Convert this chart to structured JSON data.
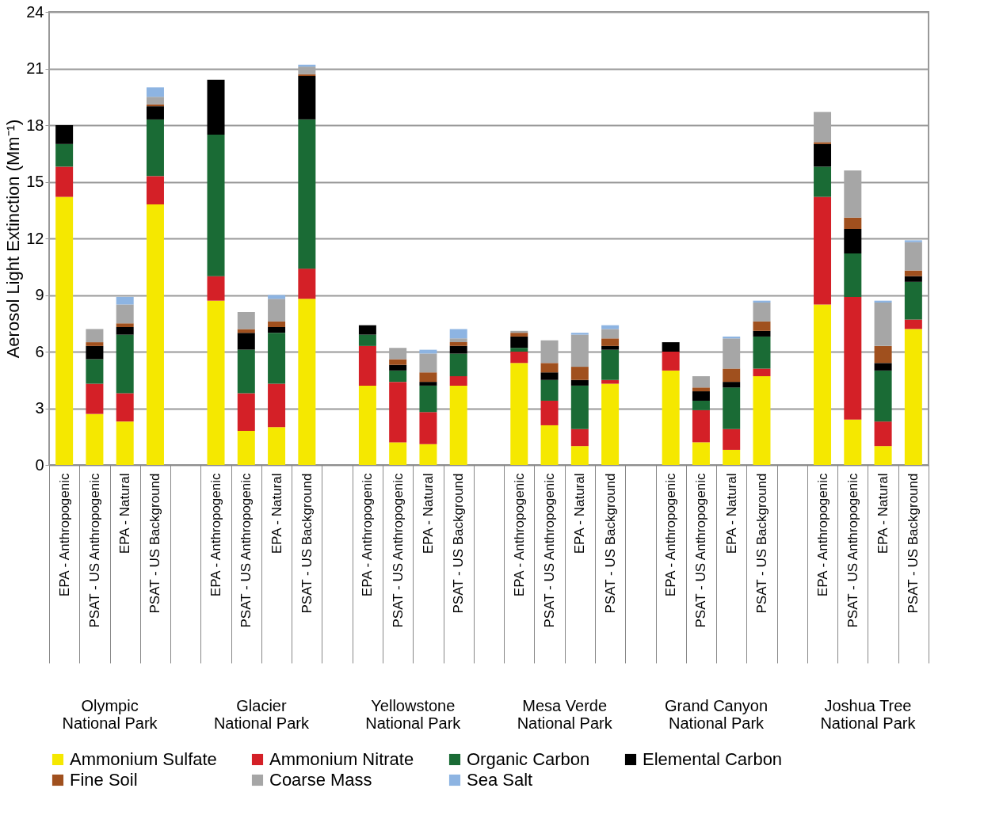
{
  "chart_data": {
    "type": "bar",
    "stacked": true,
    "ylabel": "Aerosol Light Extinction (Mm⁻¹)",
    "categories": [
      "EPA - Anthropogenic",
      "PSAT - US Anthropogenic",
      "EPA - Natural",
      "PSAT - US Background",
      null,
      "EPA - Anthropogenic",
      "PSAT - US Anthropogenic",
      "EPA - Natural",
      "PSAT - US Background",
      null,
      "EPA - Anthropogenic",
      "PSAT - US Anthropogenic",
      "EPA - Natural",
      "PSAT - US Background",
      null,
      "EPA - Anthropogenic",
      "PSAT - US Anthropogenic",
      "EPA - Natural",
      "PSAT - US Background",
      null,
      "EPA - Anthropogenic",
      "PSAT - US Anthropogenic",
      "EPA - Natural",
      "PSAT - US Background",
      null,
      "EPA - Anthropogenic",
      "PSAT - US Anthropogenic",
      "EPA - Natural",
      "PSAT - US Background"
    ],
    "series": [
      {
        "name": "Ammonium Sulfate",
        "color": "#f5e800",
        "values": [
          14.2,
          2.7,
          2.3,
          13.8,
          null,
          8.7,
          1.8,
          2.0,
          8.8,
          null,
          4.2,
          1.2,
          1.1,
          4.2,
          null,
          5.4,
          2.1,
          1.0,
          4.3,
          null,
          5.0,
          1.2,
          0.8,
          4.7,
          null,
          8.5,
          2.4,
          1.0,
          7.2
        ]
      },
      {
        "name": "Ammonium Nitrate",
        "color": "#d42027",
        "values": [
          1.6,
          1.6,
          1.5,
          1.5,
          null,
          1.3,
          2.0,
          2.3,
          1.6,
          null,
          2.1,
          3.2,
          1.7,
          0.5,
          null,
          0.6,
          1.3,
          0.9,
          0.2,
          null,
          1.0,
          1.7,
          1.1,
          0.4,
          null,
          5.7,
          6.5,
          1.3,
          0.5
        ]
      },
      {
        "name": "Organic Carbon",
        "color": "#1a6b35",
        "values": [
          1.2,
          1.3,
          3.1,
          3.0,
          null,
          7.5,
          2.3,
          2.7,
          7.9,
          null,
          0.6,
          0.6,
          1.4,
          1.2,
          null,
          0.2,
          1.1,
          2.3,
          1.6,
          null,
          0,
          0.5,
          2.2,
          1.7,
          null,
          1.6,
          2.3,
          2.7,
          2.0
        ]
      },
      {
        "name": "Elemental Carbon",
        "color": "#000000",
        "values": [
          1.0,
          0.7,
          0.4,
          0.7,
          null,
          2.9,
          0.9,
          0.3,
          2.3,
          null,
          0.5,
          0.3,
          0.2,
          0.4,
          null,
          0.6,
          0.4,
          0.3,
          0.2,
          null,
          0.5,
          0.5,
          0.3,
          0.3,
          null,
          1.2,
          1.3,
          0.4,
          0.3
        ]
      },
      {
        "name": "Fine Soil",
        "color": "#a0501e",
        "values": [
          0,
          0.2,
          0.2,
          0.1,
          null,
          0,
          0.2,
          0.3,
          0.1,
          null,
          0,
          0.3,
          0.5,
          0.2,
          null,
          0.2,
          0.5,
          0.7,
          0.4,
          null,
          0,
          0.2,
          0.7,
          0.5,
          null,
          0.1,
          0.6,
          0.9,
          0.3
        ]
      },
      {
        "name": "Coarse Mass",
        "color": "#a6a6a6",
        "values": [
          0,
          0.7,
          1.0,
          0.4,
          null,
          0,
          0.9,
          1.2,
          0.4,
          null,
          0,
          0.6,
          1.0,
          0.2,
          null,
          0.1,
          1.2,
          1.7,
          0.5,
          null,
          0,
          0.6,
          1.6,
          1.0,
          null,
          1.6,
          2.5,
          2.3,
          1.5
        ]
      },
      {
        "name": "Sea Salt",
        "color": "#8db4e2",
        "values": [
          0,
          0,
          0.4,
          0.5,
          null,
          0,
          0,
          0.2,
          0.1,
          null,
          0,
          0,
          0.2,
          0.5,
          null,
          0,
          0,
          0.1,
          0.2,
          null,
          0,
          0,
          0.1,
          0.1,
          null,
          0,
          0,
          0.1,
          0.1
        ]
      }
    ],
    "ylim": [
      0,
      24
    ],
    "yticks": [
      0,
      3,
      6,
      9,
      12,
      15,
      18,
      21,
      24
    ],
    "grid": "y",
    "legend": "bottom",
    "annotations": [
      "Olympic\nNational Park",
      "Glacier\nNational Park",
      "Yellowstone\nNational Park",
      "Mesa Verde\nNational Park",
      "Grand Canyon\nNational Park",
      "Joshua Tree\nNational Park"
    ]
  }
}
